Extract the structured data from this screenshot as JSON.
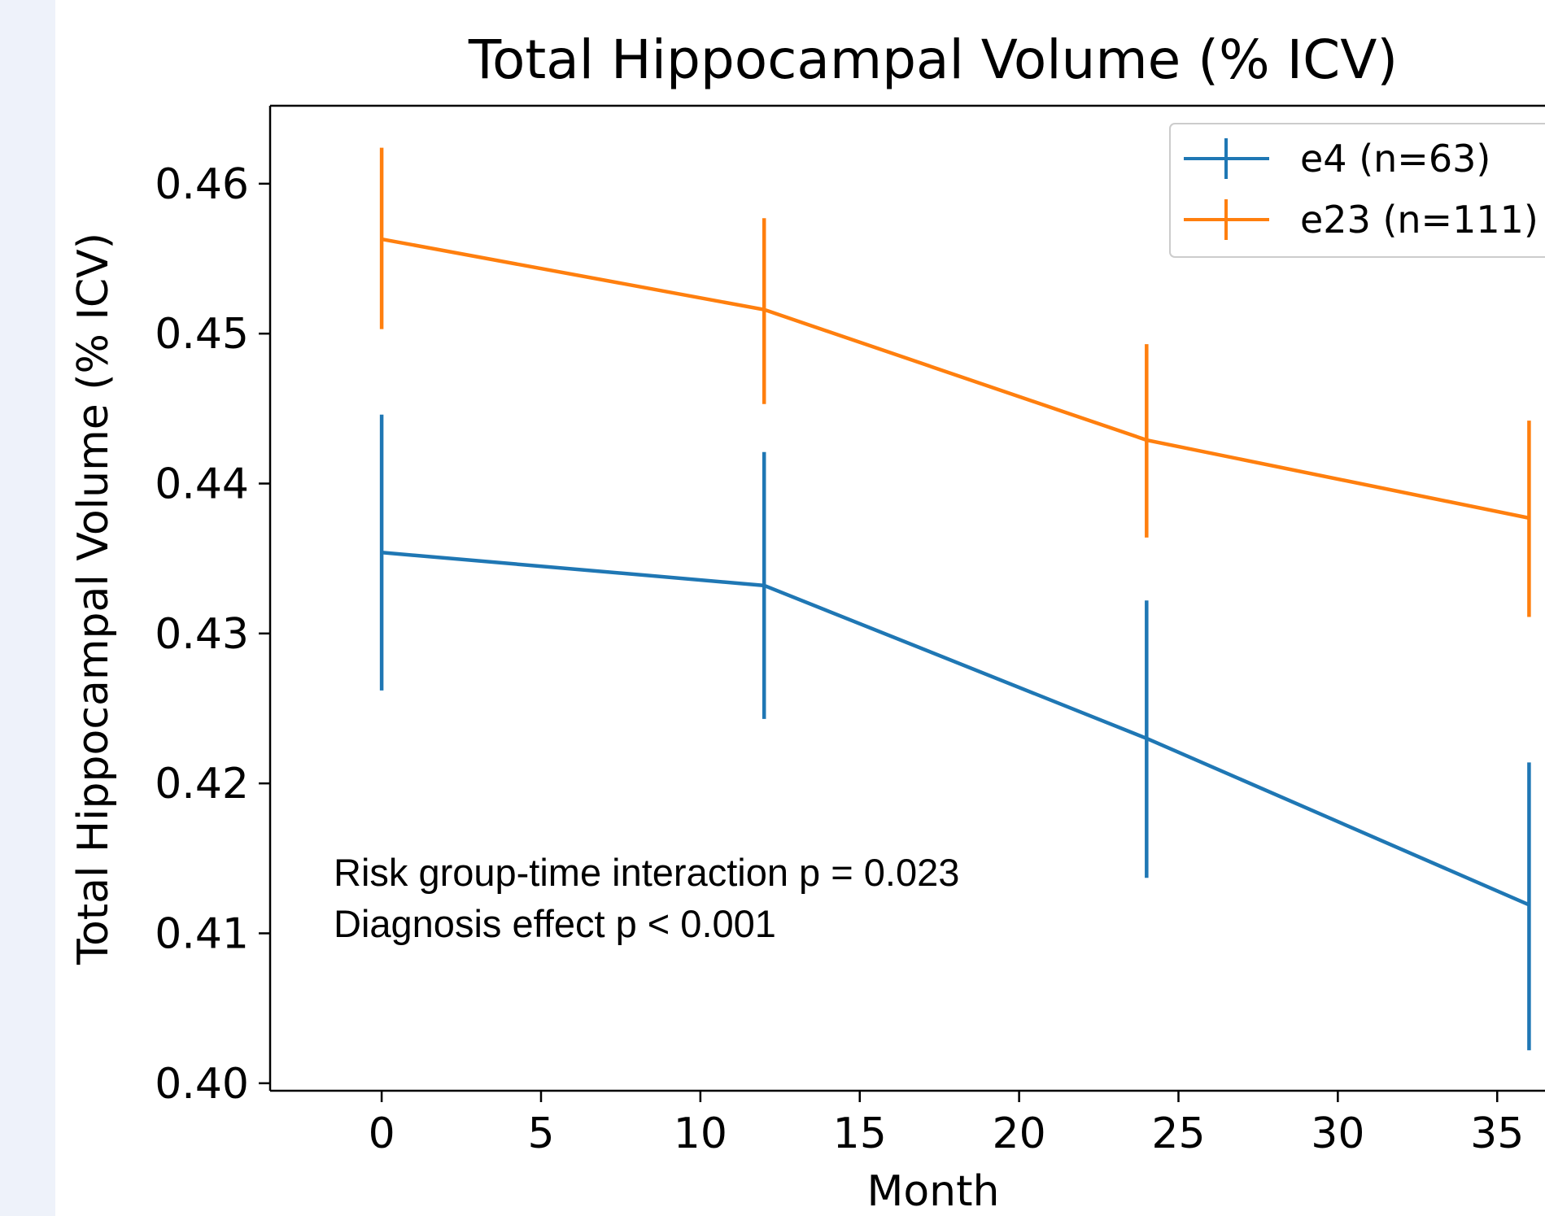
{
  "chart_data": {
    "type": "line",
    "title": "Total Hippocampal Volume (% ICV)",
    "xlabel": "Month",
    "ylabel": "Total Hippocampal Volume (% ICV)",
    "xlim": [
      -3.5,
      36.5
    ],
    "ylim": [
      0.3995,
      0.4652
    ],
    "xticks": [
      0,
      5,
      10,
      15,
      20,
      25,
      30,
      35
    ],
    "xtick_labels": [
      "0",
      "5",
      "10",
      "15",
      "20",
      "25",
      "30",
      "35"
    ],
    "yticks": [
      0.4,
      0.41,
      0.42,
      0.43,
      0.44,
      0.45,
      0.46
    ],
    "ytick_labels": [
      "0.40",
      "0.41",
      "0.42",
      "0.43",
      "0.44",
      "0.45",
      "0.46"
    ],
    "x": [
      0,
      12,
      24,
      36
    ],
    "series": [
      {
        "name": "e4 (n=63)",
        "color": "#1f77b4",
        "values": [
          0.4354,
          0.4332,
          0.423,
          0.4119
        ],
        "err_low": [
          0.4262,
          0.4243,
          0.4137,
          0.4022
        ],
        "err_high": [
          0.4446,
          0.4421,
          0.4322,
          0.4214
        ]
      },
      {
        "name": "e23 (n=111)",
        "color": "#ff7f0e",
        "values": [
          0.4563,
          0.4516,
          0.4429,
          0.4377
        ],
        "err_low": [
          0.4503,
          0.4453,
          0.4364,
          0.4311
        ],
        "err_high": [
          0.4624,
          0.4577,
          0.4493,
          0.4442
        ]
      }
    ],
    "legend": {
      "position": "upper right",
      "entries": [
        "e4 (n=63)",
        "e23 (n=111)"
      ]
    },
    "annotations": [
      "Risk group-time interaction p = 0.023",
      "Diagnosis effect p < 0.001"
    ],
    "grid": false
  }
}
